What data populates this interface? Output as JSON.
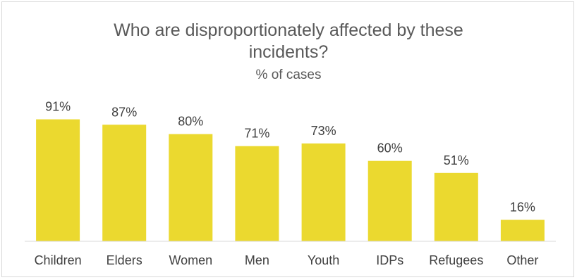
{
  "chart_data": {
    "type": "bar",
    "title_lines": [
      "Who are disproportionately affected by these",
      "incidents?"
    ],
    "subtitle": "% of cases",
    "categories": [
      "Children",
      "Elders",
      "Women",
      "Men",
      "Youth",
      "IDPs",
      "Refugees",
      "Other"
    ],
    "values": [
      91,
      87,
      80,
      71,
      73,
      60,
      51,
      16
    ],
    "value_labels": [
      "91%",
      "87%",
      "80%",
      "71%",
      "73%",
      "60%",
      "51%",
      "16%"
    ],
    "ylim": [
      0,
      100
    ],
    "grid": false,
    "legend": "none",
    "colors": {
      "bar": "#EBD92F",
      "baseline": "#d9d9d9"
    }
  }
}
